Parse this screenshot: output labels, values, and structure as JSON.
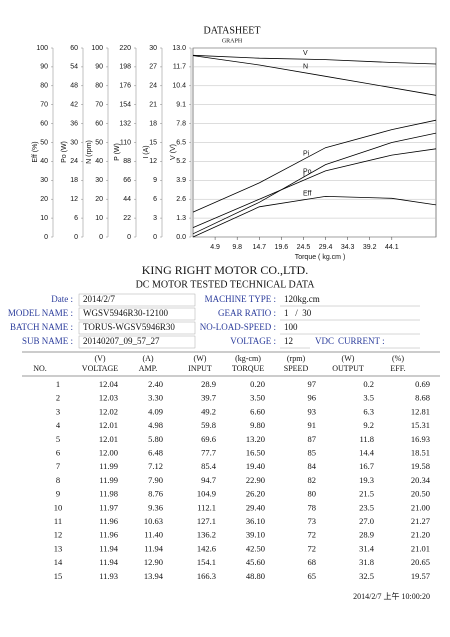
{
  "chart_data": {
    "type": "line",
    "title": "DATASHEET",
    "subtitle": "GRAPH",
    "xlabel": "Torque ( kg.cm )",
    "xlim": [
      0,
      53.9
    ],
    "xticks": [
      4.9,
      9.8,
      14.7,
      19.6,
      24.5,
      29.4,
      34.3,
      39.2,
      44.1
    ],
    "x": [
      0,
      14.7,
      29.4,
      44.1,
      53.9
    ],
    "grid": true,
    "color": "#000000",
    "y_axes": [
      {
        "label": "Eff (%)",
        "ylim": [
          0,
          100
        ],
        "yticks": [
          0,
          10,
          20,
          30,
          40,
          50,
          60,
          70,
          80,
          90,
          100
        ],
        "series": {
          "name": "Eff",
          "values": [
            0,
            16,
            21.5,
            20.5,
            17
          ]
        }
      },
      {
        "label": "Po (W)",
        "ylim": [
          0,
          60
        ],
        "yticks": [
          0,
          6,
          12,
          18,
          24,
          30,
          36,
          42,
          48,
          54,
          60
        ],
        "series": {
          "name": "Po",
          "values": [
            1,
            11,
            23,
            30,
            33
          ]
        }
      },
      {
        "label": "N (rpm)",
        "ylim": [
          0,
          100
        ],
        "yticks": [
          0,
          10,
          20,
          30,
          40,
          50,
          60,
          70,
          80,
          90,
          100
        ],
        "series": {
          "name": "N",
          "values": [
            96,
            91,
            85,
            79,
            75
          ]
        }
      },
      {
        "label": "P (W)",
        "ylim": [
          0,
          220
        ],
        "yticks": [
          0,
          22,
          44,
          66,
          88,
          110,
          132,
          154,
          176,
          198,
          220
        ],
        "series": {
          "name": "Pi",
          "values": [
            29,
            63,
            104,
            125,
            136
          ]
        }
      },
      {
        "label": "I (A)",
        "ylim": [
          0,
          30
        ],
        "yticks": [
          0,
          3,
          6,
          9,
          12,
          15,
          18,
          21,
          24,
          27,
          30
        ],
        "series": {
          "name": "I",
          "values": [
            1.5,
            6,
            10.5,
            13,
            14
          ]
        }
      },
      {
        "label": "V (V)",
        "ylim": [
          0,
          13
        ],
        "yticks": [
          {
            "value": 0,
            "label": "0.0"
          },
          1.3,
          2.6,
          3.9,
          5.2,
          6.5,
          7.8,
          9.1,
          10.4,
          11.7,
          {
            "value": 13,
            "label": "13.0"
          }
        ],
        "series": {
          "name": "V",
          "values": [
            12.5,
            12.3,
            12.2,
            12.0,
            11.9
          ]
        }
      }
    ]
  },
  "company": {
    "name": "KING RIGHT MOTOR CO.,LTD.",
    "subtitle": "DC MOTOR TESTED TECHNICAL DATA"
  },
  "info": {
    "left": [
      [
        "Date :",
        "2014/2/7"
      ],
      [
        "MODEL NAME :",
        "WGSV5946R30-12100"
      ],
      [
        "BATCH NAME :",
        "TORUS-WGSV5946R30"
      ],
      [
        "SUB NAME :",
        "20140207_09_57_27"
      ]
    ],
    "right": [
      [
        "MACHINE TYPE :",
        "120kg.cm"
      ],
      [
        "GEAR RATIO :",
        "1   /  30"
      ],
      [
        "NO-LOAD-SPEED :",
        "100"
      ],
      [
        "VOLTAGE :",
        "12"
      ]
    ],
    "voltage_unit": "VDC",
    "current_label": "CURRENT :"
  },
  "table": {
    "units": [
      "(V)",
      "(A)",
      "(W)",
      "(kg-cm)",
      "(rpm)",
      "(W)",
      "(%)"
    ],
    "columns": [
      "NO.",
      "VOLTAGE",
      "AMP.",
      "INPUT",
      "TORQUE",
      "SPEED",
      "OUTPUT",
      "EFF."
    ],
    "rows": [
      [
        "1",
        "12.04",
        "2.40",
        "28.9",
        "0.20",
        "97",
        "0.2",
        "0.69"
      ],
      [
        "2",
        "12.03",
        "3.30",
        "39.7",
        "3.50",
        "96",
        "3.5",
        "8.68"
      ],
      [
        "3",
        "12.02",
        "4.09",
        "49.2",
        "6.60",
        "93",
        "6.3",
        "12.81"
      ],
      [
        "4",
        "12.01",
        "4.98",
        "59.8",
        "9.80",
        "91",
        "9.2",
        "15.31"
      ],
      [
        "5",
        "12.01",
        "5.80",
        "69.6",
        "13.20",
        "87",
        "11.8",
        "16.93"
      ],
      [
        "6",
        "12.00",
        "6.48",
        "77.7",
        "16.50",
        "85",
        "14.4",
        "18.51"
      ],
      [
        "7",
        "11.99",
        "7.12",
        "85.4",
        "19.40",
        "84",
        "16.7",
        "19.58"
      ],
      [
        "8",
        "11.99",
        "7.90",
        "94.7",
        "22.90",
        "82",
        "19.3",
        "20.34"
      ],
      [
        "9",
        "11.98",
        "8.76",
        "104.9",
        "26.20",
        "80",
        "21.5",
        "20.50"
      ],
      [
        "10",
        "11.97",
        "9.36",
        "112.1",
        "29.40",
        "78",
        "23.5",
        "21.00"
      ],
      [
        "11",
        "11.96",
        "10.63",
        "127.1",
        "36.10",
        "73",
        "27.0",
        "21.27"
      ],
      [
        "12",
        "11.96",
        "11.40",
        "136.2",
        "39.10",
        "72",
        "28.9",
        "21.20"
      ],
      [
        "13",
        "11.94",
        "11.94",
        "142.6",
        "42.50",
        "72",
        "31.4",
        "21.01"
      ],
      [
        "14",
        "11.94",
        "12.90",
        "154.1",
        "45.60",
        "68",
        "31.8",
        "20.65"
      ],
      [
        "15",
        "11.93",
        "13.94",
        "166.3",
        "48.80",
        "65",
        "32.5",
        "19.57"
      ]
    ]
  },
  "footer": "2014/2/7 上午 10:00:20"
}
